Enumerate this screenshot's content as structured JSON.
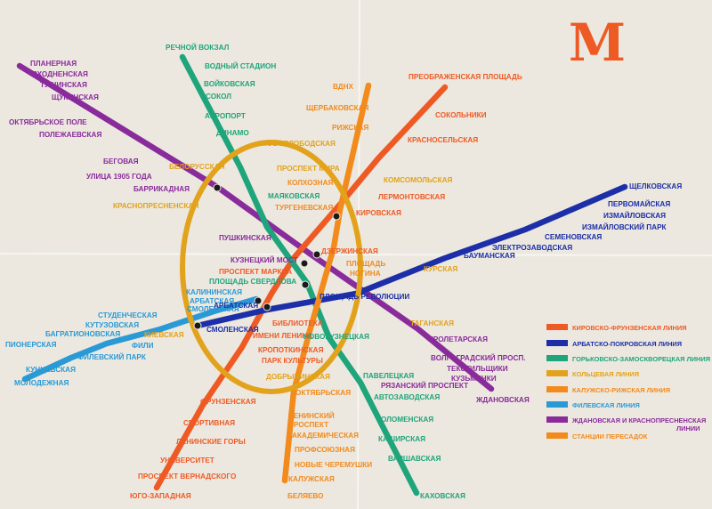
{
  "logo": {
    "letter": "М",
    "color": "#ee5a24"
  },
  "colors": {
    "red": "#ef5a24",
    "blue": "#1c2fa8",
    "green": "#1fa57b",
    "ring": "#e3a21b",
    "orange": "#f28a1c",
    "light_blue": "#2a9ad6",
    "purple": "#8a2b9c",
    "paper": "#ece8df"
  },
  "lines": [
    {
      "name": "purple",
      "color": "#8a2b9c"
    },
    {
      "name": "red",
      "color": "#ef5a24"
    },
    {
      "name": "green",
      "color": "#1fa57b"
    },
    {
      "name": "blue",
      "color": "#1c2fa8"
    },
    {
      "name": "orange",
      "color": "#f28a1c"
    },
    {
      "name": "light_blue",
      "color": "#2a9ad6"
    },
    {
      "name": "ring",
      "color": "#e3a21b"
    }
  ],
  "stations": [
    {
      "text": "ПЛАНЕРНАЯ",
      "color": "#8a2b9c"
    },
    {
      "text": "СХОДНЕНСКАЯ",
      "color": "#8a2b9c"
    },
    {
      "text": "ТУШИНСКАЯ",
      "color": "#8a2b9c"
    },
    {
      "text": "ЩУКИНСКАЯ",
      "color": "#8a2b9c"
    },
    {
      "text": "ОКТЯБРЬСКОЕ ПОЛЕ",
      "color": "#8a2b9c"
    },
    {
      "text": "ПОЛЕЖАЕВСКАЯ",
      "color": "#8a2b9c"
    },
    {
      "text": "БЕГОВАЯ",
      "color": "#8a2b9c"
    },
    {
      "text": "УЛИЦА 1905 ГОДА",
      "color": "#8a2b9c"
    },
    {
      "text": "БАРРИКАДНАЯ",
      "color": "#8a2b9c"
    },
    {
      "text": "КРАСНОПРЕСНЕНСКАЯ",
      "color": "#e3a21b"
    },
    {
      "text": "БЕЛОРУССКАЯ",
      "color": "#e3a21b"
    },
    {
      "text": "РЕЧНОЙ ВОКЗАЛ",
      "color": "#1fa57b"
    },
    {
      "text": "ВОДНЫЙ СТАДИОН",
      "color": "#1fa57b"
    },
    {
      "text": "ВОЙКОВСКАЯ",
      "color": "#1fa57b"
    },
    {
      "text": "СОКОЛ",
      "color": "#1fa57b"
    },
    {
      "text": "АЭРОПОРТ",
      "color": "#1fa57b"
    },
    {
      "text": "ДИНАМО",
      "color": "#1fa57b"
    },
    {
      "text": "НОВОСЛОБОДСКАЯ",
      "color": "#e3a21b"
    },
    {
      "text": "ВДНХ",
      "color": "#f28a1c"
    },
    {
      "text": "ЩЕРБАКОВСКАЯ",
      "color": "#f28a1c"
    },
    {
      "text": "РИЖСКАЯ",
      "color": "#f28a1c"
    },
    {
      "text": "ПРОСПЕКТ МИРА",
      "color": "#e3a21b"
    },
    {
      "text": "КОЛХОЗНАЯ",
      "color": "#f28a1c"
    },
    {
      "text": "МАЯКОВСКАЯ",
      "color": "#1fa57b"
    },
    {
      "text": "ТУРГЕНЕВСКАЯ",
      "color": "#f28a1c"
    },
    {
      "text": "ПРЕОБРАЖЕНСКАЯ ПЛОЩАДЬ",
      "color": "#ef5a24"
    },
    {
      "text": "СОКОЛЬНИКИ",
      "color": "#ef5a24"
    },
    {
      "text": "КРАСНОСЕЛЬСКАЯ",
      "color": "#ef5a24"
    },
    {
      "text": "КОМСОМОЛЬСКАЯ",
      "color": "#e3a21b"
    },
    {
      "text": "ЛЕРМОНТОВСКАЯ",
      "color": "#ef5a24"
    },
    {
      "text": "КИРОВСКАЯ",
      "color": "#ef5a24"
    },
    {
      "text": "ЩЕЛКОВСКАЯ",
      "color": "#1c2fa8"
    },
    {
      "text": "ПЕРВОМАЙСКАЯ",
      "color": "#1c2fa8"
    },
    {
      "text": "ИЗМАЙЛОВСКАЯ",
      "color": "#1c2fa8"
    },
    {
      "text": "ИЗМАЙЛОВСКИЙ ПАРК",
      "color": "#1c2fa8"
    },
    {
      "text": "СЕМЕНОВСКАЯ",
      "color": "#1c2fa8"
    },
    {
      "text": "ЭЛЕКТРОЗАВОДСКАЯ",
      "color": "#1c2fa8"
    },
    {
      "text": "БАУМАНСКАЯ",
      "color": "#1c2fa8"
    },
    {
      "text": "КУРСКАЯ",
      "color": "#e3a21b"
    },
    {
      "text": "ПУШКИНСКАЯ",
      "color": "#8a2b9c"
    },
    {
      "text": "КУЗНЕЦКИЙ МОСТ",
      "color": "#8a2b9c"
    },
    {
      "text": "ДЗЕРЖИНСКАЯ",
      "color": "#ef5a24"
    },
    {
      "text": "ПЛОЩАДЬ",
      "color": "#f28a1c"
    },
    {
      "text": "НОГИНА",
      "color": "#f28a1c"
    },
    {
      "text": "ПРОСПЕКТ МАРКСА",
      "color": "#ef5a24"
    },
    {
      "text": "ПЛОЩАДЬ СВЕРДЛОВА",
      "color": "#1fa57b"
    },
    {
      "text": "ПЛОЩАДЬ РЕВОЛЮЦИИ",
      "color": "#1c2fa8"
    },
    {
      "text": "КАЛИНИНСКАЯ",
      "color": "#2a9ad6"
    },
    {
      "text": "АРБАТСКАЯ",
      "color": "#2a9ad6"
    },
    {
      "text": "СМОЛЕНСКАЯ",
      "color": "#2a9ad6"
    },
    {
      "text": "АРБАТСКАЯ",
      "color": "#1c2fa8"
    },
    {
      "text": "СМОЛЕНСКАЯ",
      "color": "#1c2fa8"
    },
    {
      "text": "СТУДЕНЧЕСКАЯ",
      "color": "#2a9ad6"
    },
    {
      "text": "КУТУЗОВСКАЯ",
      "color": "#2a9ad6"
    },
    {
      "text": "БАГРАТИОНОВСКАЯ",
      "color": "#2a9ad6"
    },
    {
      "text": "ФИЛЕВСКИЙ ПАРК",
      "color": "#2a9ad6"
    },
    {
      "text": "ФИЛИ",
      "color": "#2a9ad6"
    },
    {
      "text": "ПИОНЕРСКАЯ",
      "color": "#2a9ad6"
    },
    {
      "text": "КУНЦЕВСКАЯ",
      "color": "#2a9ad6"
    },
    {
      "text": "МОЛОДЕЖНАЯ",
      "color": "#2a9ad6"
    },
    {
      "text": "КИЕВСКАЯ",
      "color": "#e3a21b"
    },
    {
      "text": "БИБЛИОТЕКА",
      "color": "#ef5a24"
    },
    {
      "text": "ИМЕНИ ЛЕНИНА",
      "color": "#ef5a24"
    },
    {
      "text": "КРОПОТКИНСКАЯ",
      "color": "#ef5a24"
    },
    {
      "text": "ПАРК КУЛЬТУРЫ",
      "color": "#ef5a24"
    },
    {
      "text": "ДОБРЫНИНСКАЯ",
      "color": "#e3a21b"
    },
    {
      "text": "НОВОКУЗНЕЦКАЯ",
      "color": "#1fa57b"
    },
    {
      "text": "ТАГАНСКАЯ",
      "color": "#e3a21b"
    },
    {
      "text": "ПРОЛЕТАРСКАЯ",
      "color": "#8a2b9c"
    },
    {
      "text": "ВОЛГОГРАДСКИЙ ПРОСП.",
      "color": "#8a2b9c"
    },
    {
      "text": "ТЕКСТИЛЬЩИКИ",
      "color": "#8a2b9c"
    },
    {
      "text": "КУЗЬМИНКИ",
      "color": "#8a2b9c"
    },
    {
      "text": "РЯЗАНСКИЙ ПРОСПЕКТ",
      "color": "#8a2b9c"
    },
    {
      "text": "ЖДАНОВСКАЯ",
      "color": "#8a2b9c"
    },
    {
      "text": "ПАВЕЛЕЦКАЯ",
      "color": "#1fa57b"
    },
    {
      "text": "АВТОЗАВОДСКАЯ",
      "color": "#1fa57b"
    },
    {
      "text": "КОЛОМЕНСКАЯ",
      "color": "#1fa57b"
    },
    {
      "text": "КАШИРСКАЯ",
      "color": "#1fa57b"
    },
    {
      "text": "ВАРШАВСКАЯ",
      "color": "#1fa57b"
    },
    {
      "text": "КАХОВСКАЯ",
      "color": "#1fa57b"
    },
    {
      "text": "ОКТЯБРЬСКАЯ",
      "color": "#f28a1c"
    },
    {
      "text": "ЛЕНИНСКИЙ",
      "color": "#f28a1c"
    },
    {
      "text": "ПРОСПЕКТ",
      "color": "#f28a1c"
    },
    {
      "text": "АКАДЕМИЧЕСКАЯ",
      "color": "#f28a1c"
    },
    {
      "text": "ПРОФСОЮЗНАЯ",
      "color": "#f28a1c"
    },
    {
      "text": "НОВЫЕ ЧЕРЕМУШКИ",
      "color": "#f28a1c"
    },
    {
      "text": "КАЛУЖСКАЯ",
      "color": "#f28a1c"
    },
    {
      "text": "БЕЛЯЕВО",
      "color": "#f28a1c"
    },
    {
      "text": "ФРУНЗЕНСКАЯ",
      "color": "#ef5a24"
    },
    {
      "text": "СПОРТИВНАЯ",
      "color": "#ef5a24"
    },
    {
      "text": "ЛЕНИНСКИЕ ГОРЫ",
      "color": "#ef5a24"
    },
    {
      "text": "УНИВЕРСИТЕТ",
      "color": "#ef5a24"
    },
    {
      "text": "ПРОСПЕКТ ВЕРНАДСКОГО",
      "color": "#ef5a24"
    },
    {
      "text": "ЮГО-ЗАПАДНАЯ",
      "color": "#ef5a24"
    }
  ],
  "legend": [
    {
      "color": "#ef5a24",
      "label": "КИРОВСКО-ФРУНЗЕНСКАЯ ЛИНИЯ"
    },
    {
      "color": "#1c2fa8",
      "label": "АРБАТСКО-ПОКРОВСКАЯ ЛИНИЯ"
    },
    {
      "color": "#1fa57b",
      "label": "ГОРЬКОВСКО-ЗАМОСКВОРЕЦКАЯ ЛИНИЯ"
    },
    {
      "color": "#e3a21b",
      "label": "КОЛЬЦЕВАЯ ЛИНИЯ"
    },
    {
      "color": "#f28a1c",
      "label": "КАЛУЖСКО-РИЖСКАЯ ЛИНИЯ"
    },
    {
      "color": "#2a9ad6",
      "label": "ФИЛЕВСКАЯ ЛИНИЯ"
    },
    {
      "color": "#8a2b9c",
      "label": "ЖДАНОВСКАЯ И КРАСНОПРЕСНЕНСКАЯ"
    },
    {
      "color": "#f28a1c",
      "label": "СТАНЦИИ ПЕРЕСАДОК"
    }
  ],
  "legend_extra": "ЛИНИИ"
}
